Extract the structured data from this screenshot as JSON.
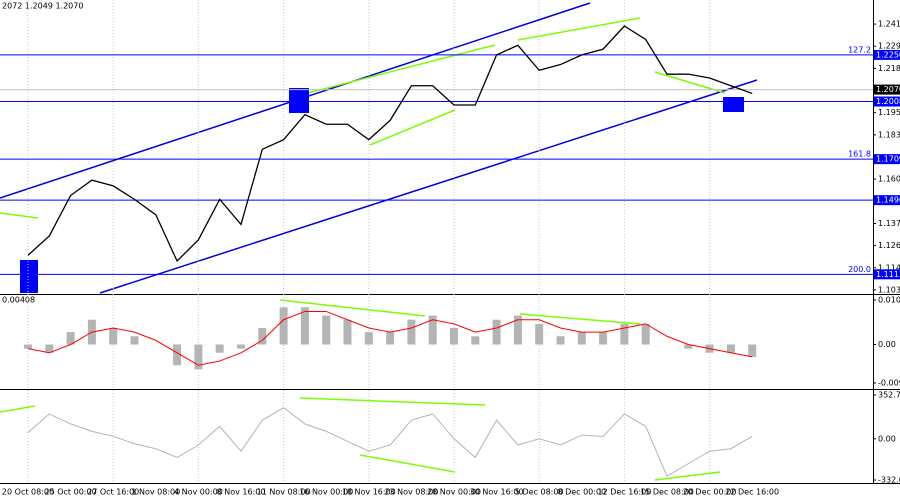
{
  "chart_data": [
    {
      "type": "line",
      "title": "2072 1.2049 1.2070",
      "categories": [
        "20 Oct 08:00",
        null,
        "25 Oct 00:00",
        null,
        "27 Oct 16:00",
        null,
        "1 Nov 08:00",
        null,
        "4 Nov 00:00",
        null,
        "8 Nov 16:00",
        null,
        "11 Nov 08:00",
        null,
        "16 Nov 00:00",
        null,
        "18 Nov 16:00",
        null,
        "23 Nov 08:00",
        null,
        "28 Nov 00:00",
        null,
        "30 Nov 16:00",
        null,
        "5 Dec 08:00",
        null,
        "8 Dec 00:00",
        null,
        "12 Dec 16:00",
        null,
        "15 Dec 08:00",
        null,
        "20 Dec 00:00",
        null,
        "22 Dec 16:00"
      ],
      "series": [
        {
          "color": "#000000",
          "values": [
            1.121,
            1.131,
            1.152,
            1.16,
            1.157,
            1.15,
            1.142,
            1.118,
            1.129,
            1.15,
            1.137,
            1.176,
            1.181,
            1.194,
            1.189,
            1.189,
            1.181,
            1.191,
            1.209,
            1.209,
            1.199,
            1.199,
            1.225,
            1.23,
            1.217,
            1.22,
            1.225,
            1.228,
            1.24,
            1.233,
            1.215,
            1.215,
            1.213,
            1.209,
            1.205
          ]
        }
      ],
      "ylim": [
        1.1014,
        1.2535
      ],
      "yticks": [
        {
          "value": 1.241,
          "label": "1.2410"
        },
        {
          "value": 1.2295,
          "label": "1.2295"
        },
        {
          "value": 1.218,
          "label": "1.2180"
        },
        {
          "value": 1.195,
          "label": "1.1950"
        },
        {
          "value": 1.1835,
          "label": "1.1835"
        },
        {
          "value": 1.1605,
          "label": "1.1605"
        },
        {
          "value": 1.1375,
          "label": "1.1375"
        },
        {
          "value": 1.126,
          "label": "1.1260"
        },
        {
          "value": 1.1145,
          "label": "1.1145"
        },
        {
          "value": 1.103,
          "label": "1.1030"
        }
      ],
      "levels": [
        {
          "value": 1.225,
          "label": "1.2250",
          "fib": "127.2"
        },
        {
          "value": 1.2008,
          "label": "1.2008"
        },
        {
          "value": 1.1709,
          "label": "1.1709",
          "fib": "161.8"
        },
        {
          "value": 1.1496,
          "label": "1.1496"
        },
        {
          "value": 1.1111,
          "label": "1.1111",
          "fib": "200.0"
        }
      ],
      "level_color": "#0000ff",
      "current": {
        "value": 1.207,
        "label": "1.2070"
      },
      "grid": true
    },
    {
      "type": "bar",
      "title": "0.00408",
      "series": [
        {
          "color": "#b4b4b4",
          "values": [
            -0.001,
            -0.002,
            0.003,
            0.006,
            0.004,
            0.002,
            0.0,
            -0.005,
            -0.006,
            -0.002,
            -0.001,
            0.004,
            0.009,
            0.009,
            0.007,
            0.006,
            0.003,
            0.003,
            0.006,
            0.007,
            0.004,
            0.002,
            0.006,
            0.007,
            0.005,
            0.002,
            0.003,
            0.003,
            0.005,
            0.005,
            0.0,
            -0.001,
            -0.002,
            -0.002,
            -0.003
          ]
        },
        {
          "color": "#ff0000",
          "values": [
            -0.001,
            -0.002,
            0.0,
            0.003,
            0.004,
            0.003,
            0.001,
            -0.002,
            -0.005,
            -0.004,
            -0.002,
            0.001,
            0.006,
            0.008,
            0.008,
            0.006,
            0.004,
            0.003,
            0.004,
            0.006,
            0.005,
            0.003,
            0.004,
            0.006,
            0.006,
            0.004,
            0.003,
            0.003,
            0.004,
            0.005,
            0.002,
            0.0,
            -0.001,
            -0.002,
            -0.003
          ]
        }
      ],
      "ylim": [
        -0.01052,
        0.01174
      ],
      "yticks": [
        0.01077,
        {
          "value": 0,
          "label": "0.00"
        },
        -0.00931
      ]
    },
    {
      "type": "line",
      "series": [
        {
          "color": "#b4b4b4",
          "values": [
            50,
            200,
            120,
            60,
            20,
            -40,
            -80,
            -150,
            -50,
            100,
            -100,
            150,
            250,
            120,
            60,
            -20,
            -100,
            -50,
            150,
            200,
            0,
            -150,
            150,
            -50,
            0,
            -50,
            30,
            20,
            200,
            100,
            -300,
            -200,
            -100,
            -80,
            20
          ]
        }
      ],
      "ylim": [
        -348,
        385
      ],
      "yticks": [
        352.7446,
        {
          "value": 0,
          "label": "0.00"
        },
        -332.029
      ]
    }
  ]
}
